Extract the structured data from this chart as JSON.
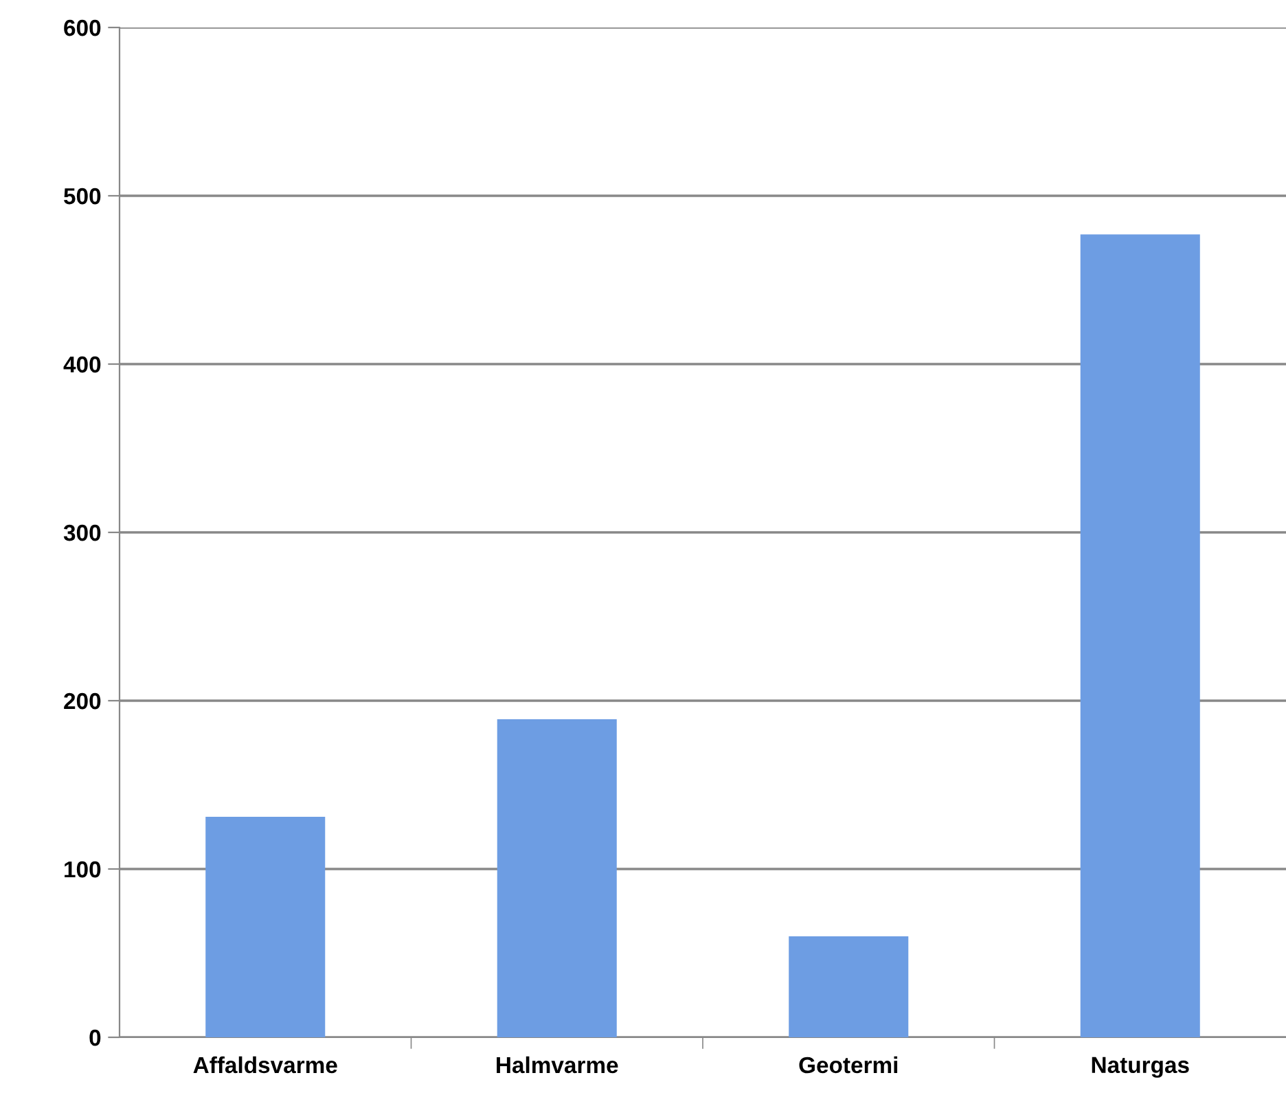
{
  "chart_data": {
    "type": "bar",
    "categories": [
      "Affaldsvarme",
      "Halmvarme",
      "Geotermi",
      "Naturgas"
    ],
    "values": [
      131,
      189,
      60,
      477
    ],
    "color": "#6d9de3",
    "ylim": [
      0,
      600
    ],
    "yticks": [
      0,
      100,
      200,
      300,
      400,
      500,
      600
    ],
    "grid": "y"
  }
}
